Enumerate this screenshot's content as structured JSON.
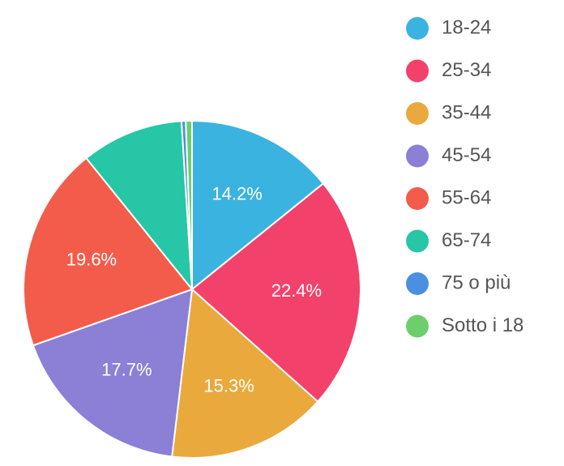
{
  "chart_data": {
    "type": "pie",
    "categories": [
      "18-24",
      "25-34",
      "35-44",
      "45-54",
      "55-64",
      "65-74",
      "75 o più",
      "Sotto i 18"
    ],
    "values": [
      14.2,
      22.4,
      15.3,
      17.7,
      19.6,
      9.8,
      0.4,
      0.6
    ],
    "value_labels": [
      "14.2%",
      "22.4%",
      "15.3%",
      "17.7%",
      "19.6%",
      null,
      null,
      null
    ],
    "colors": [
      "#3bb3e0",
      "#f2416b",
      "#e9a93c",
      "#8b7fd6",
      "#f35c4a",
      "#26c6a6",
      "#4a8fe0",
      "#6ccf6c"
    ],
    "legend": "right"
  }
}
